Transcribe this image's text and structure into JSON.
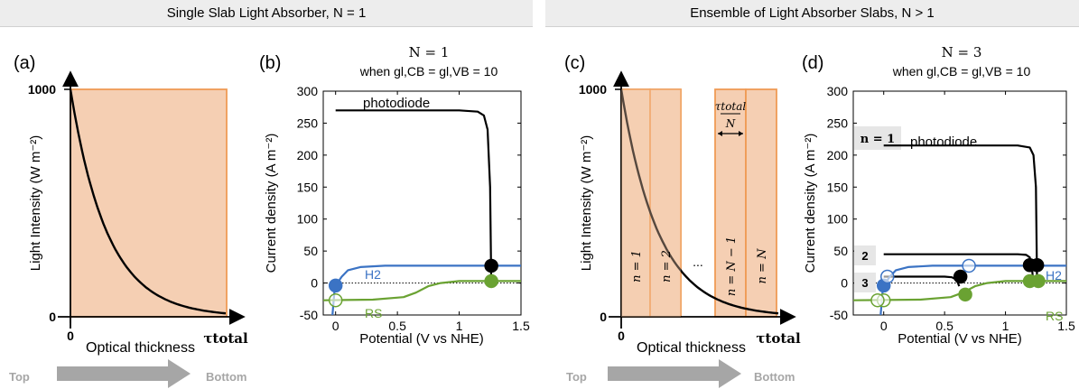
{
  "headers": {
    "left": "Single Slab Light Absorber, N = 1",
    "right": "Ensemble of Light Absorber Slabs, N > 1"
  },
  "panels": {
    "a": {
      "label": "(a)",
      "ylabel": "Light Intensity (W m⁻²)",
      "xlabel": "Optical thickness",
      "yticks": [
        "1000",
        "0"
      ],
      "xticks": [
        "0",
        "τtotal"
      ],
      "arrow_start": "Top",
      "arrow_end": "Bottom"
    },
    "b": {
      "label": "(b)",
      "title1": "N = 1",
      "title2": "when gl,CB = gl,VB = 10",
      "xlabel": "Potential (V vs NHE)",
      "ylabel": "Current density (A m⁻²)",
      "curve_labels": {
        "photodiode": "photodiode",
        "h2": "H2",
        "rs": "RS"
      }
    },
    "c": {
      "label": "(c)",
      "ylabel": "Light Intensity (W m⁻²)",
      "xlabel": "Optical thickness",
      "yticks": [
        "1000",
        "0"
      ],
      "xticks": [
        "0",
        "τtotal"
      ],
      "slabs": [
        "n = 1",
        "n = 2",
        "n = N − 1",
        "n = N"
      ],
      "ellipsis": "...",
      "width_label_top": "τtotal",
      "width_label_bottom": "N",
      "arrow_start": "Top",
      "arrow_end": "Bottom"
    },
    "d": {
      "label": "(d)",
      "title1": "N = 3",
      "title2": "when gl,CB = gl,VB = 10",
      "xlabel": "Potential (V vs NHE)",
      "ylabel": "Current density (A m⁻²)",
      "curve_labels": {
        "photodiode": "photodiode",
        "h2": "H2",
        "rs": "RS"
      },
      "tags": [
        "n = 1",
        "2",
        "3"
      ]
    }
  },
  "colors": {
    "slab": "#f5cfb3",
    "slab_border": "#ef9b55",
    "h2": "#3b73c4",
    "rs": "#6aa232",
    "photodiode": "#000000",
    "arrow": "#a6a6a6"
  },
  "chart_data": [
    {
      "type": "line",
      "title": "N = 1",
      "xlabel": "Potential (V vs NHE)",
      "ylabel": "Current density (A m⁻²)",
      "xlim": [
        -0.1,
        1.5
      ],
      "ylim": [
        -50,
        300
      ],
      "xticks": [
        0,
        0.5,
        1,
        1.5
      ],
      "yticks": [
        -50,
        0,
        50,
        100,
        150,
        200,
        250,
        300
      ],
      "series": [
        {
          "name": "photodiode",
          "x": [
            0,
            1.0,
            1.15,
            1.2,
            1.23,
            1.25,
            1.26
          ],
          "y": [
            270,
            270,
            268,
            262,
            240,
            150,
            -5
          ]
        },
        {
          "name": "H2",
          "x": [
            -0.03,
            -0.01,
            0,
            0.05,
            0.1,
            0.2,
            0.4,
            1.0,
            1.5
          ],
          "y": [
            -60,
            -15,
            -4,
            10,
            20,
            25,
            27,
            27,
            27
          ]
        },
        {
          "name": "RS",
          "x": [
            -0.1,
            0.3,
            0.55,
            0.65,
            0.75,
            0.85,
            1.0,
            1.5
          ],
          "y": [
            -27,
            -26,
            -22,
            -15,
            -5,
            0,
            3,
            3
          ]
        }
      ],
      "markers": [
        {
          "series": "H2",
          "x": 0,
          "y": -4,
          "filled": true
        },
        {
          "series": "RS",
          "x": 0,
          "y": -27,
          "filled": false
        },
        {
          "series": "photodiode",
          "x": 1.26,
          "y": 27,
          "filled": true
        },
        {
          "series": "RS",
          "x": 1.26,
          "y": 3,
          "filled": true
        }
      ]
    },
    {
      "type": "line",
      "title": "N = 3",
      "xlabel": "Potential (V vs NHE)",
      "ylabel": "Current density (A m⁻²)",
      "xlim": [
        -0.25,
        1.5
      ],
      "ylim": [
        -50,
        300
      ],
      "xticks": [
        0,
        0.5,
        1,
        1.5
      ],
      "yticks": [
        -50,
        0,
        50,
        100,
        150,
        200,
        250,
        300
      ],
      "series": [
        {
          "name": "photodiode n = 1",
          "x": [
            0,
            1.1,
            1.2,
            1.23,
            1.25,
            1.26
          ],
          "y": [
            215,
            215,
            212,
            200,
            150,
            -5
          ]
        },
        {
          "name": "photodiode n = 2",
          "x": [
            0,
            1.1,
            1.17,
            1.2,
            1.22,
            1.23
          ],
          "y": [
            45,
            45,
            44,
            40,
            20,
            -5
          ]
        },
        {
          "name": "photodiode n = 3",
          "x": [
            0,
            0.5,
            0.56,
            0.6,
            0.62
          ],
          "y": [
            10,
            10,
            9,
            5,
            -5
          ]
        },
        {
          "name": "H2",
          "x": [
            -0.03,
            -0.01,
            0,
            0.05,
            0.1,
            0.2,
            0.4,
            1.0,
            1.5
          ],
          "y": [
            -60,
            -15,
            -4,
            10,
            20,
            25,
            27,
            27,
            27
          ]
        },
        {
          "name": "RS",
          "x": [
            -0.25,
            0.3,
            0.55,
            0.65,
            0.75,
            0.85,
            1.0,
            1.5
          ],
          "y": [
            -27,
            -26,
            -22,
            -15,
            -5,
            0,
            3,
            3
          ]
        }
      ],
      "markers": [
        {
          "series": "H2",
          "x": 0,
          "y": -4,
          "filled": true
        },
        {
          "series": "RS",
          "x": 0,
          "y": -27,
          "filled": false
        },
        {
          "series": "RS",
          "x": -0.05,
          "y": -27,
          "filled": false
        },
        {
          "series": "H2",
          "x": 0.03,
          "y": 10,
          "filled": false
        },
        {
          "series": "photodiode",
          "x": 0.63,
          "y": 10,
          "filled": true
        },
        {
          "series": "RS",
          "x": 0.67,
          "y": -18,
          "filled": true
        },
        {
          "series": "photodiode",
          "x": 1.2,
          "y": 28,
          "filled": true
        },
        {
          "series": "photodiode",
          "x": 1.26,
          "y": 28,
          "filled": true
        },
        {
          "series": "H2",
          "x": 0.7,
          "y": 27,
          "filled": false
        },
        {
          "series": "RS",
          "x": 1.2,
          "y": 3,
          "filled": true
        },
        {
          "series": "RS",
          "x": 1.27,
          "y": 3,
          "filled": true
        }
      ]
    }
  ]
}
